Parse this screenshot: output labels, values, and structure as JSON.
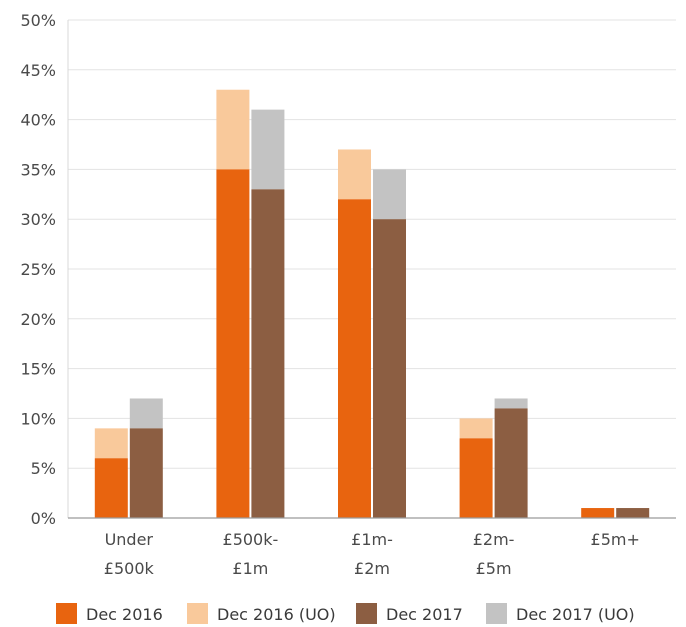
{
  "chart_data": {
    "type": "bar",
    "stacked_within_group": true,
    "categories": [
      [
        "Under",
        "£500k"
      ],
      [
        "£500k-",
        "£1m"
      ],
      [
        "£1m-",
        "£2m"
      ],
      [
        "£2m-",
        "£5m"
      ],
      [
        "£5m+"
      ]
    ],
    "groups": [
      {
        "name": "Dec 2016",
        "base": {
          "name": "Dec 2016",
          "color": "#E8640F",
          "values": [
            6,
            35,
            32,
            8,
            1
          ]
        },
        "extra": {
          "name": "Dec 2016 (UO)",
          "color": "#F9C99B",
          "totals": [
            9,
            43,
            37,
            10,
            1
          ]
        }
      },
      {
        "name": "Dec 2017",
        "base": {
          "name": "Dec 2017",
          "color": "#8C5E42",
          "values": [
            9,
            33,
            30,
            11,
            1
          ]
        },
        "extra": {
          "name": "Dec 2017 (UO)",
          "color": "#C3C3C3",
          "totals": [
            12,
            41,
            35,
            12,
            1
          ]
        }
      }
    ],
    "ylim": [
      0,
      50
    ],
    "yticks": [
      "0%",
      "5%",
      "10%",
      "15%",
      "20%",
      "25%",
      "30%",
      "35%",
      "40%",
      "45%",
      "50%"
    ],
    "grid": true,
    "legend_position": "bottom",
    "legend": [
      "Dec 2016",
      "Dec 2016 (UO)",
      "Dec 2017",
      "Dec 2017 (UO)"
    ]
  }
}
